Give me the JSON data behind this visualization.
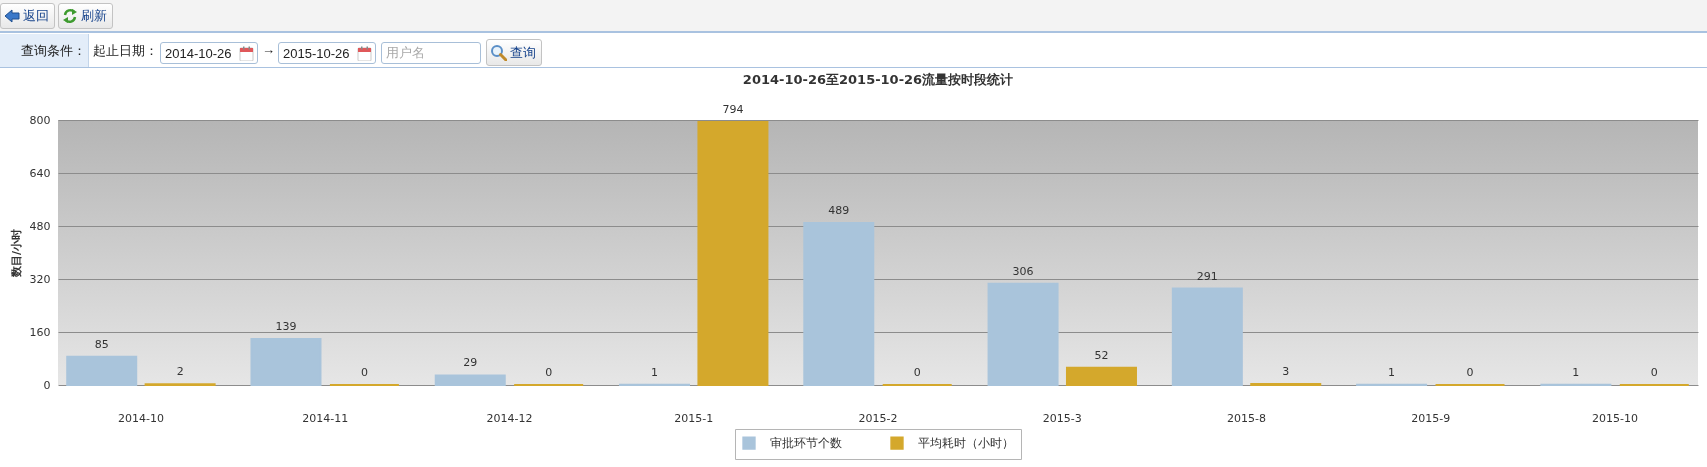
{
  "chart_data": [
    {
      "type": "other",
      "annotations": [
        "返回",
        "刷新",
        "查询条件：",
        "起止日期：",
        "2014-10-26",
        "→",
        "2015-10-26",
        "用户名",
        "查询"
      ]
    },
    {
      "type": "bar",
      "title": "2014-10-26至2015-10-26流量按时段统计",
      "ylabel": "数目/小时",
      "categories": [
        "2014-10",
        "2014-11",
        "2014-12",
        "2015-1",
        "2015-2",
        "2015-3",
        "2015-8",
        "2015-9",
        "2015-10"
      ],
      "series": [
        {
          "name": "审批环节个数",
          "color": "#a9c4db",
          "values": [
            85,
            139,
            29,
            1,
            489,
            306,
            291,
            1,
            1
          ]
        },
        {
          "name": "平均耗时（小时）",
          "color": "#d4a82c",
          "values": [
            2,
            0,
            0,
            794,
            0,
            52,
            3,
            0,
            0
          ]
        }
      ],
      "ylim": [
        0,
        800
      ],
      "yticks": [
        0,
        160,
        320,
        480,
        640,
        800
      ],
      "grid": "y",
      "legend": "bottom",
      "data_labels": true
    }
  ]
}
